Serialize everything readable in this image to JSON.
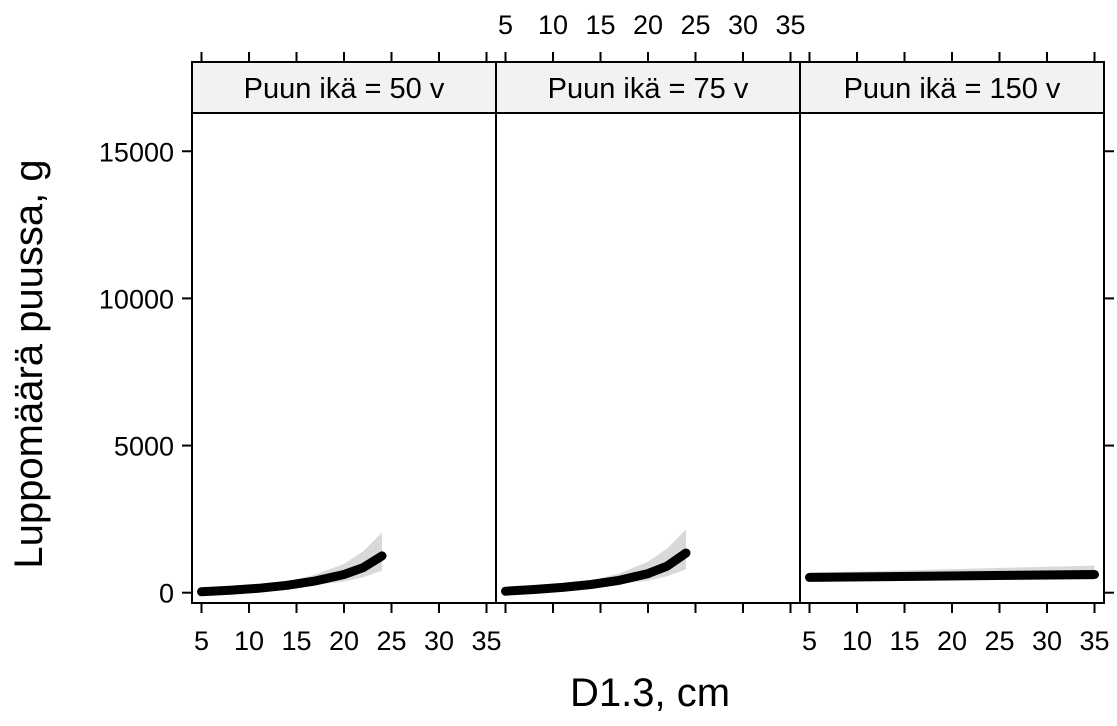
{
  "chart_data": {
    "type": "line",
    "layout": "lattice-panels",
    "xlabel": "D1.3, cm",
    "ylabel": "Luppomäärä puussa, g",
    "xlim": [
      4,
      36
    ],
    "ylim": [
      -350,
      16300
    ],
    "xticks": [
      5,
      10,
      15,
      20,
      25,
      30,
      35
    ],
    "yticks": [
      0,
      5000,
      10000,
      15000
    ],
    "panels": [
      {
        "strip": "Puun ikä = 50 v",
        "x": [
          5,
          8,
          11,
          14,
          17,
          20,
          22,
          24
        ],
        "y": [
          30,
          80,
          150,
          250,
          400,
          620,
          850,
          1250
        ],
        "lower": [
          10,
          50,
          100,
          170,
          260,
          380,
          520,
          750
        ],
        "upper": [
          60,
          120,
          220,
          370,
          620,
          980,
          1400,
          2050
        ]
      },
      {
        "strip": "Puun ikä = 75 v",
        "x": [
          5,
          8,
          11,
          14,
          17,
          20,
          22,
          24
        ],
        "y": [
          50,
          110,
          180,
          280,
          420,
          650,
          900,
          1350
        ],
        "lower": [
          30,
          70,
          130,
          200,
          290,
          410,
          560,
          800
        ],
        "upper": [
          90,
          150,
          260,
          410,
          660,
          1050,
          1500,
          2150
        ]
      },
      {
        "strip": "Puun ikä = 150 v",
        "x": [
          5,
          35
        ],
        "y": [
          520,
          620
        ],
        "lower": [
          420,
          430
        ],
        "upper": [
          680,
          920
        ]
      }
    ]
  }
}
